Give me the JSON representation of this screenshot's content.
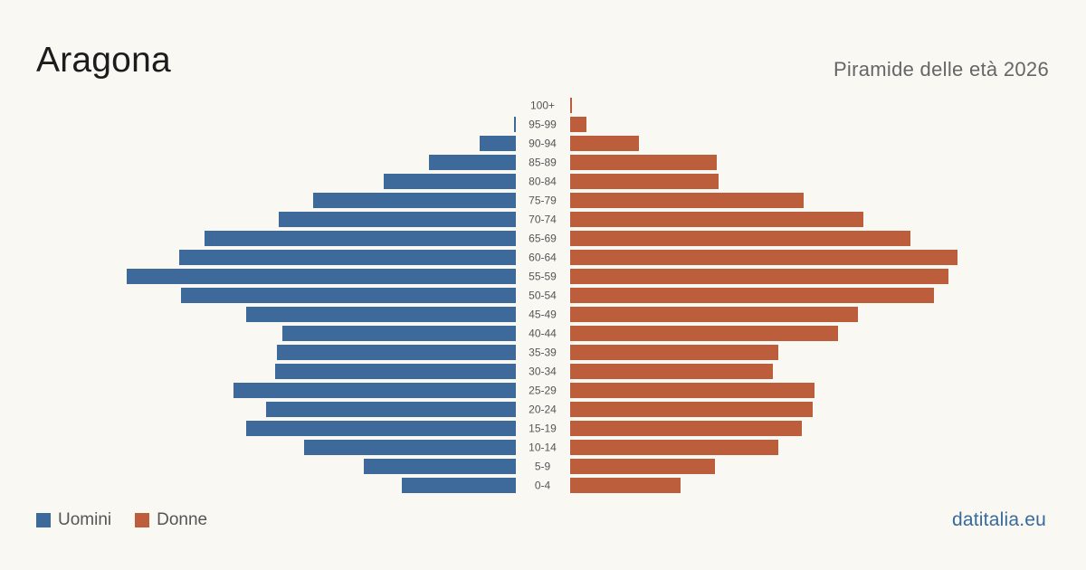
{
  "header": {
    "title": "Aragona",
    "subtitle": "Piramide delle età 2026"
  },
  "legend": {
    "men_label": "Uomini",
    "women_label": "Donne"
  },
  "brand": "datitalia.eu",
  "colors": {
    "men": "#3d6a9b",
    "women": "#bc5e3c",
    "background": "#faf8f3"
  },
  "chart_data": {
    "type": "bar",
    "orientation": "horizontal-diverging",
    "title": "Piramide delle età 2026",
    "categories": [
      "100+",
      "95-99",
      "90-94",
      "85-89",
      "80-84",
      "75-79",
      "70-74",
      "65-69",
      "60-64",
      "55-59",
      "50-54",
      "45-49",
      "40-44",
      "35-39",
      "30-34",
      "25-29",
      "20-24",
      "15-19",
      "10-14",
      "5-9",
      "0-4"
    ],
    "series": [
      {
        "name": "Uomini",
        "values": [
          0,
          1,
          20,
          48,
          73,
          112,
          131,
          172,
          186,
          215,
          185,
          149,
          129,
          132,
          133,
          156,
          138,
          149,
          117,
          84,
          63
        ]
      },
      {
        "name": "Donne",
        "values": [
          1,
          9,
          38,
          81,
          82,
          129,
          162,
          188,
          214,
          209,
          201,
          159,
          148,
          115,
          112,
          135,
          134,
          128,
          115,
          80,
          61
        ]
      }
    ],
    "xlim": [
      0,
      215
    ],
    "grid": false,
    "legend_position": "bottom-left"
  }
}
